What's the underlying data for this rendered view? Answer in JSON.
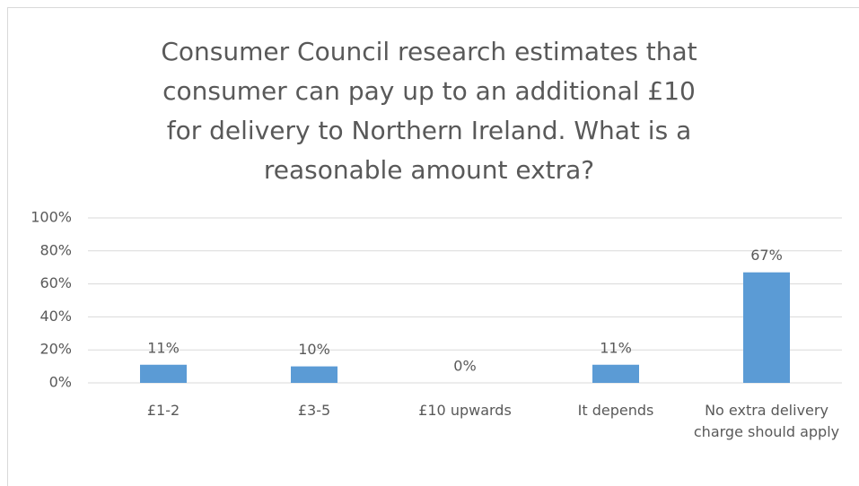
{
  "chart_data": {
    "type": "bar",
    "title": "Consumer Council research estimates that consumer can pay up to an additional £10 for delivery to Northern Ireland. What is a reasonable amount extra?",
    "categories": [
      "£1-2",
      "£3-5",
      "£10 upwards",
      "It depends",
      "No extra delivery charge should apply"
    ],
    "values": [
      11,
      10,
      0,
      11,
      67
    ],
    "value_labels": [
      "11%",
      "10%",
      "0%",
      "11%",
      "67%"
    ],
    "color": "#5b9bd5",
    "ylim": [
      0,
      100
    ],
    "yticks": [
      {
        "value": 0,
        "label": "0%"
      },
      {
        "value": 20,
        "label": "20%"
      },
      {
        "value": 40,
        "label": "40%"
      },
      {
        "value": 60,
        "label": "60%"
      },
      {
        "value": 80,
        "label": "80%"
      },
      {
        "value": 100,
        "label": "100%"
      }
    ],
    "grid": true
  }
}
